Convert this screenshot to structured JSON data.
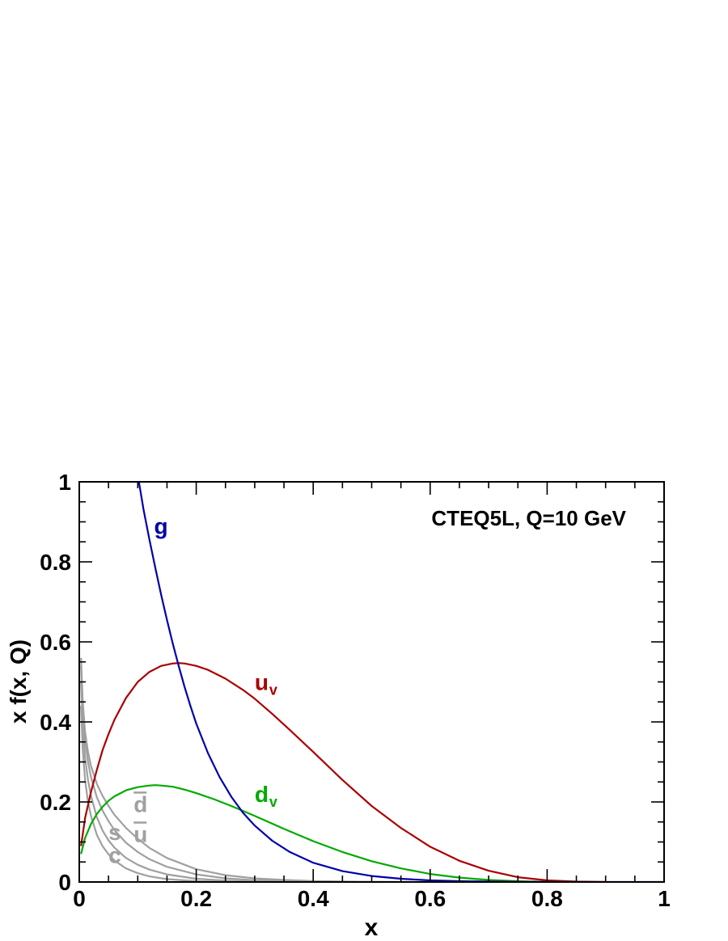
{
  "chart_data": {
    "type": "line",
    "title": "CTEQ5L, Q=10 GeV",
    "xlabel": "x",
    "ylabel": "x f(x, Q)",
    "xlim": [
      0,
      1
    ],
    "ylim": [
      0,
      1
    ],
    "xticks": [
      0,
      0.2,
      0.4,
      0.6,
      0.8,
      1
    ],
    "xtick_labels": [
      "0",
      "0.2",
      "0.4",
      "0.6",
      "0.8",
      "1"
    ],
    "yticks": [
      0,
      0.2,
      0.4,
      0.6,
      0.8,
      1
    ],
    "ytick_labels": [
      "0",
      "0.2",
      "0.4",
      "0.6",
      "0.8",
      "1"
    ],
    "grid": false,
    "colors": {
      "g": "#0000aa",
      "u_v": "#aa0000",
      "d_v": "#00aa00",
      "sea": "#a0a0a0",
      "axes": "#000000"
    },
    "series": [
      {
        "name": "g",
        "label": "g",
        "sub": "",
        "bar": false,
        "color": "#0000aa",
        "x": [
          0.102,
          0.11,
          0.12,
          0.13,
          0.14,
          0.15,
          0.16,
          0.17,
          0.18,
          0.19,
          0.2,
          0.22,
          0.24,
          0.26,
          0.28,
          0.3,
          0.33,
          0.36,
          0.4,
          0.45,
          0.5,
          0.55,
          0.6,
          0.65,
          0.7,
          0.75,
          0.8,
          0.85,
          0.9,
          1.0
        ],
        "y": [
          1.0,
          0.93,
          0.855,
          0.785,
          0.718,
          0.655,
          0.595,
          0.54,
          0.488,
          0.44,
          0.396,
          0.322,
          0.262,
          0.213,
          0.173,
          0.141,
          0.103,
          0.075,
          0.048,
          0.027,
          0.015,
          0.008,
          0.004,
          0.002,
          0.001,
          0.0005,
          0.0002,
          0.0001,
          0.0,
          0.0
        ]
      },
      {
        "name": "u_v",
        "label": "u",
        "sub": "v",
        "bar": false,
        "color": "#aa0000",
        "x": [
          0.003,
          0.01,
          0.02,
          0.03,
          0.04,
          0.05,
          0.06,
          0.08,
          0.1,
          0.12,
          0.14,
          0.16,
          0.17,
          0.18,
          0.2,
          0.22,
          0.25,
          0.28,
          0.3,
          0.33,
          0.36,
          0.4,
          0.45,
          0.5,
          0.55,
          0.6,
          0.65,
          0.7,
          0.75,
          0.8,
          0.85,
          0.9
        ],
        "y": [
          0.09,
          0.16,
          0.225,
          0.28,
          0.33,
          0.37,
          0.405,
          0.46,
          0.5,
          0.525,
          0.54,
          0.546,
          0.547,
          0.546,
          0.54,
          0.53,
          0.508,
          0.48,
          0.458,
          0.42,
          0.38,
          0.325,
          0.255,
          0.19,
          0.135,
          0.088,
          0.053,
          0.028,
          0.012,
          0.004,
          0.001,
          0.0
        ]
      },
      {
        "name": "d_v",
        "label": "d",
        "sub": "v",
        "bar": false,
        "color": "#00aa00",
        "x": [
          0.003,
          0.01,
          0.02,
          0.03,
          0.04,
          0.05,
          0.06,
          0.08,
          0.1,
          0.12,
          0.13,
          0.14,
          0.16,
          0.18,
          0.2,
          0.23,
          0.26,
          0.3,
          0.35,
          0.4,
          0.45,
          0.5,
          0.55,
          0.6,
          0.65,
          0.7,
          0.75,
          0.8,
          0.85
        ],
        "y": [
          0.07,
          0.11,
          0.145,
          0.17,
          0.188,
          0.203,
          0.214,
          0.229,
          0.237,
          0.241,
          0.242,
          0.241,
          0.238,
          0.231,
          0.222,
          0.207,
          0.19,
          0.165,
          0.133,
          0.102,
          0.075,
          0.052,
          0.034,
          0.02,
          0.011,
          0.005,
          0.002,
          0.0005,
          0.0
        ]
      },
      {
        "name": "d_bar",
        "label": "d",
        "sub": "",
        "bar": true,
        "color": "#a0a0a0",
        "x": [
          0.003,
          0.006,
          0.01,
          0.015,
          0.02,
          0.03,
          0.04,
          0.05,
          0.06,
          0.08,
          0.1,
          0.12,
          0.15,
          0.2,
          0.25,
          0.3,
          0.35,
          0.4,
          0.5,
          0.6
        ],
        "y": [
          0.56,
          0.45,
          0.375,
          0.325,
          0.29,
          0.245,
          0.215,
          0.19,
          0.168,
          0.135,
          0.108,
          0.085,
          0.06,
          0.032,
          0.017,
          0.009,
          0.005,
          0.0025,
          0.0005,
          0.0
        ]
      },
      {
        "name": "u_bar",
        "label": "u",
        "sub": "",
        "bar": true,
        "color": "#a0a0a0",
        "x": [
          0.003,
          0.006,
          0.01,
          0.015,
          0.02,
          0.03,
          0.04,
          0.05,
          0.06,
          0.08,
          0.1,
          0.12,
          0.15,
          0.2,
          0.25,
          0.3,
          0.35,
          0.4,
          0.5,
          0.6
        ],
        "y": [
          0.54,
          0.43,
          0.355,
          0.3,
          0.262,
          0.212,
          0.178,
          0.152,
          0.13,
          0.098,
          0.075,
          0.057,
          0.038,
          0.019,
          0.009,
          0.0045,
          0.002,
          0.001,
          0.0002,
          0.0
        ]
      },
      {
        "name": "s",
        "label": "s",
        "sub": "",
        "bar": false,
        "color": "#a0a0a0",
        "x": [
          0.003,
          0.006,
          0.01,
          0.015,
          0.02,
          0.03,
          0.04,
          0.05,
          0.06,
          0.08,
          0.1,
          0.12,
          0.15,
          0.2,
          0.25,
          0.3,
          0.35,
          0.4,
          0.5
        ],
        "y": [
          0.5,
          0.39,
          0.31,
          0.255,
          0.215,
          0.162,
          0.128,
          0.104,
          0.086,
          0.06,
          0.043,
          0.031,
          0.019,
          0.008,
          0.0035,
          0.0015,
          0.0006,
          0.0002,
          0.0
        ]
      },
      {
        "name": "c",
        "label": "c",
        "sub": "",
        "bar": false,
        "color": "#a0a0a0",
        "x": [
          0.003,
          0.006,
          0.01,
          0.015,
          0.02,
          0.03,
          0.04,
          0.05,
          0.06,
          0.08,
          0.1,
          0.12,
          0.15,
          0.2,
          0.25,
          0.3,
          0.35,
          0.4
        ],
        "y": [
          0.44,
          0.33,
          0.255,
          0.2,
          0.165,
          0.118,
          0.089,
          0.069,
          0.054,
          0.034,
          0.022,
          0.014,
          0.007,
          0.002,
          0.0006,
          0.0002,
          0.0,
          0.0
        ]
      }
    ],
    "annotations": [
      {
        "for": "g",
        "text": "g",
        "sub": "",
        "bar": false,
        "at": [
          0.128,
          0.87
        ]
      },
      {
        "for": "u_v",
        "text": "u",
        "sub": "v",
        "bar": false,
        "at": [
          0.3,
          0.48
        ]
      },
      {
        "for": "d_v",
        "text": "d",
        "sub": "v",
        "bar": false,
        "at": [
          0.3,
          0.2
        ]
      },
      {
        "for": "d_bar",
        "text": "d",
        "sub": "",
        "bar": true,
        "at": [
          0.093,
          0.175
        ]
      },
      {
        "for": "u_bar",
        "text": "u",
        "sub": "",
        "bar": true,
        "at": [
          0.093,
          0.1
        ]
      },
      {
        "for": "s",
        "text": "s",
        "sub": "",
        "bar": false,
        "at": [
          0.05,
          0.105
        ]
      },
      {
        "for": "c",
        "text": "c",
        "sub": "",
        "bar": false,
        "at": [
          0.05,
          0.047
        ]
      }
    ]
  }
}
